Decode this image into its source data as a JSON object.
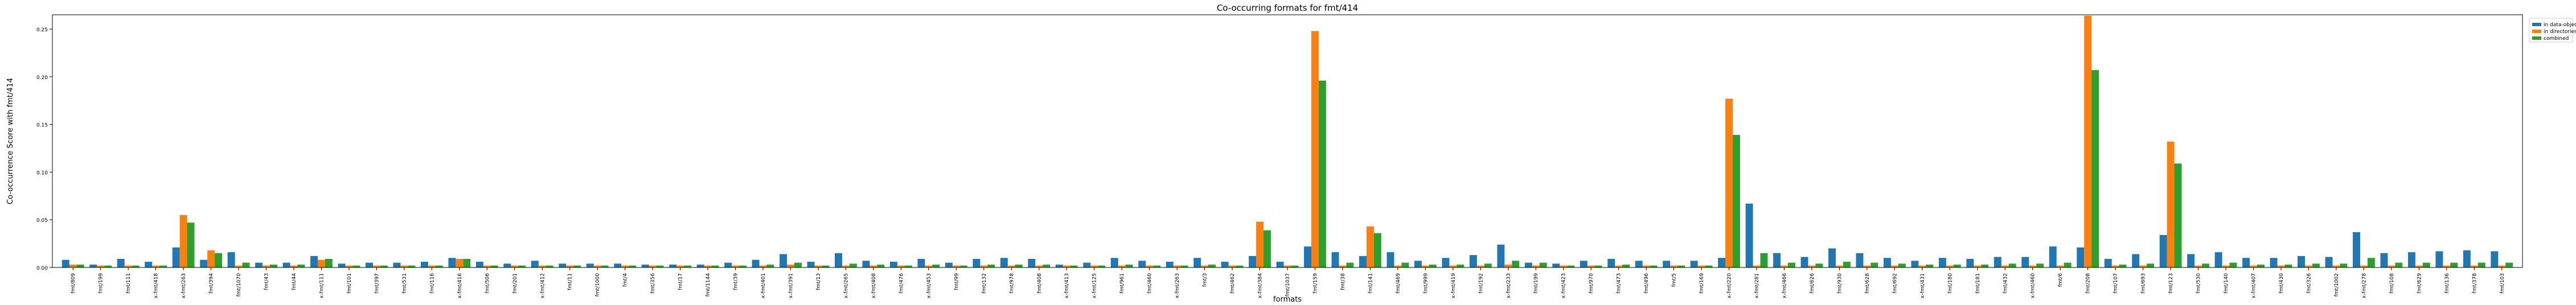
{
  "chart_data": {
    "type": "bar",
    "title": "Co-occurring formats for fmt/414",
    "xlabel": "formats",
    "ylabel": "Co-occurrence Score with fmt/414",
    "ylim": [
      0,
      0.265
    ],
    "yticks": [
      "0.00",
      "0.05",
      "0.10",
      "0.15",
      "0.20",
      "0.25"
    ],
    "ytick_values": [
      0,
      0.05,
      0.1,
      0.15,
      0.2,
      0.25
    ],
    "legend_position": "outside-top-right",
    "categories": [
      "fmt/809",
      "fmt/199",
      "fmt/111",
      "x-fmt/418",
      "x-fmt/263",
      "fmt/394",
      "fmt/1070",
      "fmt/43",
      "fmt/44",
      "x-fmt/111",
      "fmt/101",
      "fmt/397",
      "fmt/531",
      "fmt/116",
      "x-fmt/416",
      "fmt/506",
      "fmt/201",
      "x-fmt/412",
      "fmt/11",
      "fmt/1000",
      "fmt/4",
      "fmt/356",
      "fmt/17",
      "fmt/1144",
      "fmt/39",
      "x-fmt/401",
      "x-fmt/391",
      "fmt/13",
      "x-fmt/265",
      "x-fmt/408",
      "fmt/476",
      "x-fmt/453",
      "fmt/99",
      "fmt/132",
      "fmt/978",
      "fmt/408",
      "x-fmt/413",
      "x-fmt/125",
      "fmt/961",
      "fmt/460",
      "x-fmt/263",
      "fmt/3",
      "fmt/462",
      "x-fmt/384",
      "fmt/1037",
      "fmt/159",
      "fmt/38",
      "fmt/141",
      "fmt/469",
      "fmt/999",
      "x-fmt/419",
      "fmt/192",
      "x-fmt/233",
      "fmt/199",
      "x-fmt/423",
      "fmt/970",
      "fmt/473",
      "fmt/496",
      "fmt/5",
      "fmt/169",
      "x-fmt/220",
      "x-fmt/281",
      "x-fmt/466",
      "fmt/626",
      "fmt/930",
      "fmt/628",
      "fmt/692",
      "x-fmt/431",
      "fmt/180",
      "fmt/181",
      "fmt/432",
      "x-fmt/460",
      "fmt/6",
      "fmt/208",
      "fmt/107",
      "fmt/693",
      "fmt/123",
      "fmt/530",
      "fmt/140",
      "x-fmt/407",
      "fmt/430",
      "fmt/326",
      "fmt/1002",
      "x-fmt/278",
      "fmt/108",
      "fmt/629",
      "fmt/136",
      "fmt/378",
      "fmt/103"
    ],
    "series": [
      {
        "name": "in data-objects",
        "color": "#1f77b4",
        "values": [
          0.008,
          0.003,
          0.009,
          0.006,
          0.021,
          0.008,
          0.016,
          0.005,
          0.005,
          0.012,
          0.004,
          0.005,
          0.005,
          0.006,
          0.01,
          0.006,
          0.004,
          0.007,
          0.004,
          0.004,
          0.004,
          0.003,
          0.003,
          0.003,
          0.005,
          0.008,
          0.014,
          0.006,
          0.015,
          0.007,
          0.006,
          0.009,
          0.005,
          0.009,
          0.01,
          0.009,
          0.003,
          0.005,
          0.01,
          0.007,
          0.006,
          0.01,
          0.006,
          0.012,
          0.006,
          0.022,
          0.016,
          0.012,
          0.016,
          0.007,
          0.01,
          0.013,
          0.024,
          0.005,
          0.004,
          0.007,
          0.009,
          0.007,
          0.007,
          0.007,
          0.01,
          0.067,
          0.015,
          0.011,
          0.02,
          0.015,
          0.01,
          0.007,
          0.01,
          0.009,
          0.011,
          0.011,
          0.022,
          0.021,
          0.009,
          0.014,
          0.034,
          0.014,
          0.016,
          0.01,
          0.01,
          0.012,
          0.011,
          0.037,
          0.015,
          0.016,
          0.017,
          0.018,
          0.017
        ]
      },
      {
        "name": "in directories",
        "color": "#ff7f0e",
        "values": [
          0.003,
          0.002,
          0.002,
          0.002,
          0.055,
          0.018,
          0.002,
          0.002,
          0.002,
          0.008,
          0.002,
          0.002,
          0.002,
          0.002,
          0.009,
          0.002,
          0.002,
          0.002,
          0.002,
          0.002,
          0.002,
          0.002,
          0.002,
          0.002,
          0.002,
          0.002,
          0.003,
          0.002,
          0.002,
          0.002,
          0.002,
          0.002,
          0.002,
          0.002,
          0.002,
          0.002,
          0.002,
          0.002,
          0.002,
          0.002,
          0.002,
          0.002,
          0.002,
          0.048,
          0.002,
          0.248,
          0.002,
          0.043,
          0.002,
          0.002,
          0.002,
          0.002,
          0.003,
          0.002,
          0.002,
          0.002,
          0.002,
          0.002,
          0.002,
          0.002,
          0.177,
          0.002,
          0.002,
          0.002,
          0.002,
          0.002,
          0.002,
          0.002,
          0.002,
          0.002,
          0.002,
          0.002,
          0.002,
          0.264,
          0.002,
          0.002,
          0.132,
          0.002,
          0.002,
          0.002,
          0.002,
          0.002,
          0.002,
          0.002,
          0.002,
          0.002,
          0.002,
          0.002,
          0.002
        ]
      },
      {
        "name": "combined",
        "color": "#2ca02c",
        "values": [
          0.003,
          0.002,
          0.002,
          0.002,
          0.047,
          0.015,
          0.005,
          0.003,
          0.003,
          0.009,
          0.002,
          0.002,
          0.002,
          0.002,
          0.009,
          0.002,
          0.002,
          0.002,
          0.002,
          0.002,
          0.002,
          0.002,
          0.002,
          0.002,
          0.002,
          0.003,
          0.005,
          0.002,
          0.004,
          0.003,
          0.002,
          0.003,
          0.002,
          0.003,
          0.003,
          0.003,
          0.002,
          0.002,
          0.003,
          0.002,
          0.002,
          0.003,
          0.002,
          0.039,
          0.002,
          0.196,
          0.005,
          0.036,
          0.005,
          0.003,
          0.003,
          0.004,
          0.007,
          0.005,
          0.002,
          0.002,
          0.003,
          0.002,
          0.002,
          0.002,
          0.139,
          0.015,
          0.005,
          0.004,
          0.006,
          0.005,
          0.004,
          0.003,
          0.003,
          0.003,
          0.004,
          0.004,
          0.005,
          0.207,
          0.003,
          0.004,
          0.109,
          0.004,
          0.005,
          0.003,
          0.003,
          0.004,
          0.004,
          0.01,
          0.005,
          0.005,
          0.005,
          0.005,
          0.005
        ]
      }
    ]
  }
}
